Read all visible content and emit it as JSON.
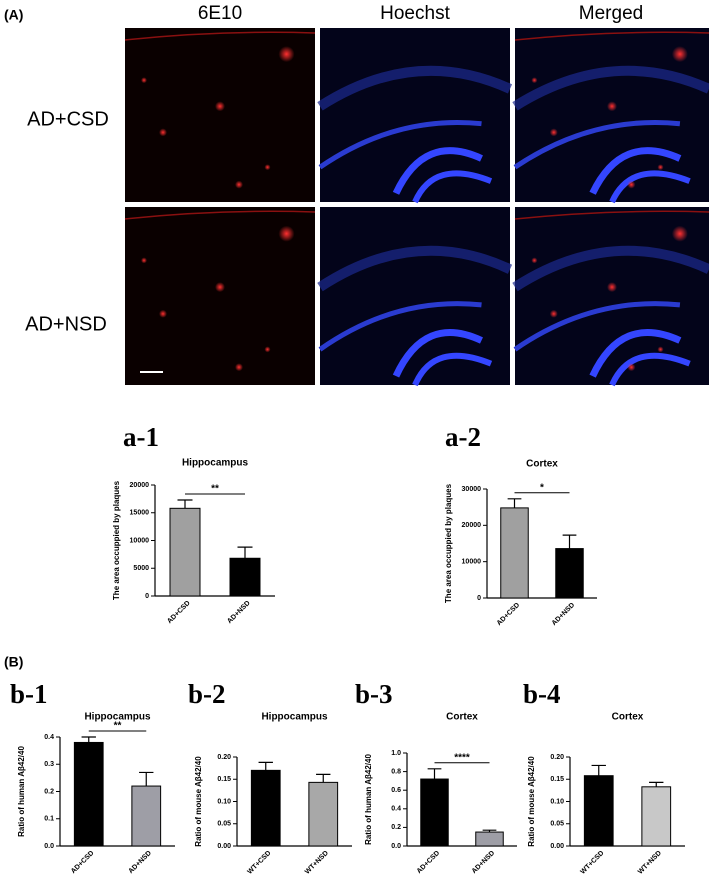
{
  "panel_a": {
    "label": "(A)",
    "columns": [
      "6E10",
      "Hoechst",
      "Merged"
    ],
    "rows": [
      "AD+CSD",
      "AD+NSD"
    ]
  },
  "panel_b": {
    "label": "(B)"
  },
  "chart_data": [
    {
      "type": "bar",
      "panel": "a-1",
      "title": "Hippocampus",
      "ylabel": "The area occuppied by plaques",
      "categories": [
        "AD+CSD",
        "AD+NSD"
      ],
      "values": [
        15800,
        6800
      ],
      "errors": [
        1500,
        2000
      ],
      "colors": [
        "#a0a0a0",
        "#000000"
      ],
      "annotation": "**",
      "ylim": [
        0,
        20000
      ],
      "yticks": [
        0,
        5000,
        10000,
        15000,
        20000
      ]
    },
    {
      "type": "bar",
      "panel": "a-2",
      "title": "Cortex",
      "ylabel": "The area occuppied by plaques",
      "categories": [
        "AD+CSD",
        "AD+NSD"
      ],
      "values": [
        24800,
        13600
      ],
      "errors": [
        2500,
        3700
      ],
      "colors": [
        "#a0a0a0",
        "#000000"
      ],
      "annotation": "*",
      "ylim": [
        0,
        30000
      ],
      "yticks": [
        0,
        10000,
        20000,
        30000
      ]
    },
    {
      "type": "bar",
      "panel": "b-1",
      "title": "Hippocampus",
      "ylabel": "Ratio of human Aβ42/40",
      "categories": [
        "AD+CSD",
        "AD+NSD"
      ],
      "values": [
        0.38,
        0.22
      ],
      "errors": [
        0.02,
        0.05
      ],
      "colors": [
        "#000000",
        "#9e9ea6"
      ],
      "annotation": "**",
      "ylim": [
        0,
        0.4
      ],
      "yticks": [
        {
          "value": 0,
          "label": "0.0"
        },
        0.1,
        0.2,
        0.3,
        0.4
      ]
    },
    {
      "type": "bar",
      "panel": "b-2",
      "title": "Hippocampus",
      "ylabel": "Ratio of mouse Aβ42/40",
      "categories": [
        "WT+CSD",
        "WT+NSD"
      ],
      "values": [
        0.17,
        0.143
      ],
      "errors": [
        0.018,
        0.018
      ],
      "colors": [
        "#000000",
        "#a8a8a8"
      ],
      "ylim": [
        0,
        0.2
      ],
      "yticks": [
        {
          "value": 0,
          "label": "0.00"
        },
        0.05,
        {
          "value": 0.1,
          "label": "0.10"
        },
        0.15,
        {
          "value": 0.2,
          "label": "0.20"
        }
      ]
    },
    {
      "type": "bar",
      "panel": "b-3",
      "title": "Cortex",
      "ylabel": "Ratio of human Aβ42/40",
      "categories": [
        "AD+CSD",
        "AD+NSD"
      ],
      "values": [
        0.72,
        0.15
      ],
      "errors": [
        0.11,
        0.02
      ],
      "colors": [
        "#000000",
        "#9e9ea6"
      ],
      "annotation": "****",
      "ylim": [
        0,
        1
      ],
      "yticks": [
        {
          "value": 0,
          "label": "0.0"
        },
        0.2,
        0.4,
        0.6,
        0.8,
        {
          "value": 1,
          "label": "1.0"
        }
      ]
    },
    {
      "type": "bar",
      "panel": "b-4",
      "title": "Cortex",
      "ylabel": "Ratio of mouse Aβ42/40",
      "categories": [
        "WT+CSD",
        "WT+NSD"
      ],
      "values": [
        0.158,
        0.133
      ],
      "errors": [
        0.023,
        0.01
      ],
      "colors": [
        "#000000",
        "#c8c8c8"
      ],
      "ylim": [
        0,
        0.2
      ],
      "yticks": [
        {
          "value": 0,
          "label": "0.00"
        },
        0.05,
        {
          "value": 0.1,
          "label": "0.10"
        },
        0.15,
        {
          "value": 0.2,
          "label": "0.20"
        }
      ]
    }
  ]
}
